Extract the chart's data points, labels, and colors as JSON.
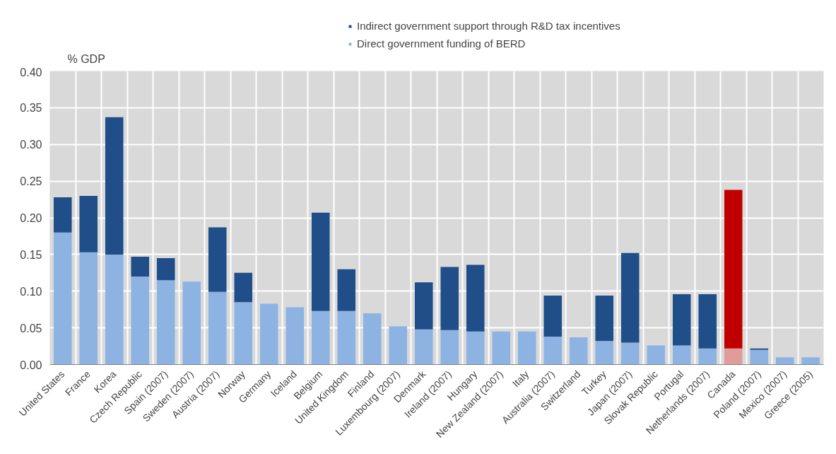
{
  "chart_data": {
    "type": "bar",
    "stacked": true,
    "ylabel": "% GDP",
    "categories": [
      "United States",
      "France",
      "Korea",
      "Czech Republic",
      "Spain (2007)",
      "Sweden (2007)",
      "Austria (2007)",
      "Norway",
      "Germany",
      "Iceland",
      "Belgium",
      "United Kingdom",
      "Finland",
      "Luxembourg (2007)",
      "Denmark",
      "Ireland (2007)",
      "Hungary",
      "New Zealand (2007)",
      "Italy",
      "Australia (2007)",
      "Switzerland",
      "Turkey",
      "Japan (2007)",
      "Slovak Republic",
      "Portugal",
      "Netherlands (2007)",
      "Canada",
      "Poland (2007)",
      "Mexico (2007)",
      "Greece (2005)"
    ],
    "series": [
      {
        "name": "Direct government funding of BERD",
        "color": "#8db3e2",
        "colors": [
          "#8db3e2",
          "#8db3e2",
          "#8db3e2",
          "#8db3e2",
          "#8db3e2",
          "#8db3e2",
          "#8db3e2",
          "#8db3e2",
          "#8db3e2",
          "#8db3e2",
          "#8db3e2",
          "#8db3e2",
          "#8db3e2",
          "#8db3e2",
          "#8db3e2",
          "#8db3e2",
          "#8db3e2",
          "#8db3e2",
          "#8db3e2",
          "#8db3e2",
          "#8db3e2",
          "#8db3e2",
          "#8db3e2",
          "#8db3e2",
          "#8db3e2",
          "#8db3e2",
          "#e09b9b",
          "#8db3e2",
          "#8db3e2",
          "#8db3e2"
        ],
        "values": [
          0.18,
          0.153,
          0.15,
          0.12,
          0.115,
          0.113,
          0.099,
          0.085,
          0.083,
          0.078,
          0.073,
          0.073,
          0.07,
          0.052,
          0.048,
          0.047,
          0.045,
          0.045,
          0.045,
          0.038,
          0.037,
          0.032,
          0.03,
          0.026,
          0.026,
          0.022,
          0.022,
          0.02,
          0.01,
          0.01
        ]
      },
      {
        "name": "Indirect government support through R&D tax incentives",
        "color": "#1f4e89",
        "colors": [
          "#1f4e89",
          "#1f4e89",
          "#1f4e89",
          "#1f4e89",
          "#1f4e89",
          "#1f4e89",
          "#1f4e89",
          "#1f4e89",
          "#1f4e89",
          "#1f4e89",
          "#1f4e89",
          "#1f4e89",
          "#1f4e89",
          "#1f4e89",
          "#1f4e89",
          "#1f4e89",
          "#1f4e89",
          "#1f4e89",
          "#1f4e89",
          "#1f4e89",
          "#1f4e89",
          "#1f4e89",
          "#1f4e89",
          "#1f4e89",
          "#1f4e89",
          "#1f4e89",
          "#c00000",
          "#1f4e89",
          "#1f4e89",
          "#1f4e89"
        ],
        "values": [
          0.048,
          0.077,
          0.187,
          0.027,
          0.03,
          null,
          0.088,
          0.04,
          null,
          null,
          0.134,
          0.057,
          null,
          null,
          0.064,
          0.086,
          0.091,
          null,
          null,
          0.056,
          null,
          0.062,
          0.122,
          null,
          0.07,
          0.074,
          0.216,
          0.002,
          null,
          null
        ]
      }
    ],
    "ylim": [
      0,
      0.4
    ],
    "yticks": [
      {
        "value": 0,
        "label": "0.00"
      },
      {
        "value": 0.05,
        "label": "0.05"
      },
      {
        "value": 0.1,
        "label": "0.10"
      },
      {
        "value": 0.15,
        "label": "0.15"
      },
      {
        "value": 0.2,
        "label": "0.20"
      },
      {
        "value": 0.25,
        "label": "0.25"
      },
      {
        "value": 0.3,
        "label": "0.30"
      },
      {
        "value": 0.35,
        "label": "0.35"
      },
      {
        "value": 0.4,
        "label": "0.40"
      }
    ],
    "grid": true,
    "legend": "top"
  }
}
